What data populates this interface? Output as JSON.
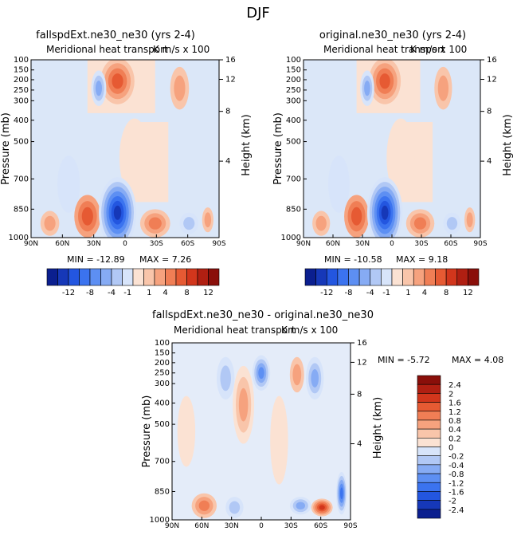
{
  "page_title": "DJF",
  "panels": [
    {
      "title": "fallspdExt.ne30_ne30 (yrs 2-4)",
      "subtitle_left": "Meridional heat transport",
      "subtitle_right": "K m/s x 100",
      "min_label": "MIN = -12.89",
      "max_label": "MAX =    7.26"
    },
    {
      "title": "original.ne30_ne30 (yrs 2-4)",
      "subtitle_left": "Meridional heat transport",
      "subtitle_right": "K m/s x 100",
      "min_label": "MIN = -10.58",
      "max_label": "MAX =    9.18"
    },
    {
      "title": "fallspdExt.ne30_ne30 - original.ne30_ne30",
      "subtitle_left": "Meridional heat transport",
      "subtitle_right": "K m/s x 100",
      "min_label": "MIN =   -5.72",
      "max_label": "MAX =    4.08"
    }
  ],
  "chart_data": [
    {
      "type": "heatmap",
      "title": "fallspdExt.ne30_ne30 (yrs 2-4)",
      "xlabel": "",
      "ylabel": "Pressure (mb)",
      "y2label": "Height (km)",
      "x_ticks": [
        "90N",
        "60N",
        "30N",
        "0",
        "30S",
        "60S",
        "90S"
      ],
      "y_ticks": [
        "100",
        "150",
        "200",
        "250",
        "300",
        "400",
        "500",
        "700",
        "850",
        "1000"
      ],
      "y2_ticks": [
        "16",
        "12",
        "8",
        "4"
      ],
      "colorbar": [
        "-12",
        "-8",
        "-4",
        "-1",
        "1",
        "4",
        "8",
        "12"
      ],
      "min": -12.89,
      "max": 7.26
    },
    {
      "type": "heatmap",
      "title": "original.ne30_ne30 (yrs 2-4)",
      "xlabel": "",
      "ylabel": "Pressure (mb)",
      "y2label": "Height (km)",
      "x_ticks": [
        "90N",
        "60N",
        "30N",
        "0",
        "30S",
        "60S",
        "90S"
      ],
      "y_ticks": [
        "100",
        "150",
        "200",
        "250",
        "300",
        "400",
        "500",
        "700",
        "850",
        "1000"
      ],
      "y2_ticks": [
        "16",
        "12",
        "8",
        "4"
      ],
      "colorbar": [
        "-12",
        "-8",
        "-4",
        "-1",
        "1",
        "4",
        "8",
        "12"
      ],
      "min": -10.58,
      "max": 9.18
    },
    {
      "type": "heatmap",
      "title": "fallspdExt.ne30_ne30 - original.ne30_ne30",
      "xlabel": "",
      "ylabel": "Pressure (mb)",
      "y2label": "Height (km)",
      "x_ticks": [
        "90N",
        "60N",
        "30N",
        "0",
        "30S",
        "60S",
        "90S"
      ],
      "y_ticks": [
        "100",
        "150",
        "200",
        "250",
        "300",
        "400",
        "500",
        "700",
        "850",
        "1000"
      ],
      "y2_ticks": [
        "16",
        "12",
        "8",
        "4"
      ],
      "colorbar": [
        "2.4",
        "2",
        "1.6",
        "1.2",
        "0.8",
        "0.4",
        "0.2",
        "0",
        "-0.2",
        "-0.4",
        "-0.8",
        "-1.2",
        "-1.6",
        "-2",
        "-2.4"
      ],
      "min": -5.72,
      "max": 4.08
    }
  ],
  "colors": {
    "neg_scale": [
      "#0b1f8f",
      "#1638b8",
      "#2356e0",
      "#3b73ef",
      "#5d8ff3",
      "#86abf4",
      "#b1c8f5",
      "#d7e4fa"
    ],
    "pos_scale": [
      "#fbe2d3",
      "#f9c5aa",
      "#f6a27e",
      "#f07e55",
      "#e65a33",
      "#d2361c",
      "#b01f12",
      "#8a0f0a"
    ]
  }
}
